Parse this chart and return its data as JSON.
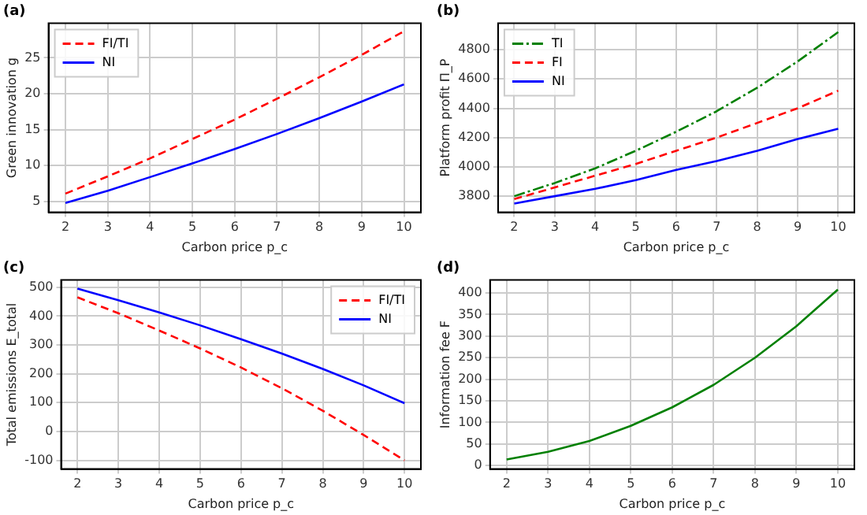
{
  "chart_data": [
    {
      "type": "line",
      "title": "(a)",
      "xlabel": "Carbon price p_c",
      "ylabel": "Green innovation g",
      "x": [
        2,
        3,
        4,
        5,
        6,
        7,
        8,
        9,
        10
      ],
      "xlim": [
        1.6,
        10.4
      ],
      "xticks": [
        2,
        3,
        4,
        5,
        6,
        7,
        8,
        9,
        10
      ],
      "ylim": [
        3.5,
        29.8
      ],
      "yticks": [
        5,
        10,
        15,
        20,
        25
      ],
      "grid": true,
      "legend": "top left",
      "marker": "none",
      "series": [
        {
          "name": "FI/TI",
          "color": "#ff0000",
          "line_style": "dashed",
          "values": [
            6.1,
            8.5,
            11,
            13.7,
            16.4,
            19.3,
            22.3,
            25.4,
            28.7
          ]
        },
        {
          "name": "NI",
          "color": "#0000ff",
          "line_style": "solid",
          "values": [
            4.8,
            6.5,
            8.4,
            10.3,
            12.3,
            14.4,
            16.6,
            18.9,
            21.3
          ]
        }
      ]
    },
    {
      "type": "line",
      "title": "(b)",
      "xlabel": "Carbon price p_c",
      "ylabel": "Platform profit Π_P",
      "x": [
        2,
        3,
        4,
        5,
        6,
        7,
        8,
        9,
        10
      ],
      "xlim": [
        1.6,
        10.4
      ],
      "xticks": [
        2,
        3,
        4,
        5,
        6,
        7,
        8,
        9,
        10
      ],
      "ylim": [
        3690,
        4980
      ],
      "yticks": [
        3800,
        4000,
        4200,
        4400,
        4600,
        4800
      ],
      "grid": true,
      "legend": "top left",
      "marker": "none",
      "series": [
        {
          "name": "TI",
          "color": "#008000",
          "line_style": "dashdot",
          "values": [
            3800,
            3890,
            3990,
            4110,
            4240,
            4380,
            4540,
            4720,
            4920
          ]
        },
        {
          "name": "FI",
          "color": "#ff0000",
          "line_style": "dashed",
          "values": [
            3780,
            3860,
            3940,
            4020,
            4110,
            4200,
            4300,
            4400,
            4520
          ]
        },
        {
          "name": "NI",
          "color": "#0000ff",
          "line_style": "solid",
          "values": [
            3750,
            3800,
            3850,
            3910,
            3980,
            4040,
            4110,
            4190,
            4260
          ]
        }
      ]
    },
    {
      "type": "line",
      "title": "(c)",
      "xlabel": "Carbon price p_c",
      "ylabel": "Total emissions E_total",
      "x": [
        2,
        3,
        4,
        5,
        6,
        7,
        8,
        9,
        10
      ],
      "xlim": [
        1.6,
        10.4
      ],
      "xticks": [
        2,
        3,
        4,
        5,
        6,
        7,
        8,
        9,
        10
      ],
      "ylim": [
        -130,
        525
      ],
      "yticks": [
        -100,
        0,
        100,
        200,
        300,
        400,
        500
      ],
      "grid": true,
      "legend": "top right",
      "marker": "none",
      "series": [
        {
          "name": "FI/TI",
          "color": "#ff0000",
          "line_style": "dashed",
          "values": [
            465,
            410,
            350,
            288,
            222,
            150,
            72,
            -12,
            -100
          ]
        },
        {
          "name": "NI",
          "color": "#0000ff",
          "line_style": "solid",
          "values": [
            495,
            455,
            413,
            368,
            320,
            270,
            217,
            160,
            98
          ]
        }
      ]
    },
    {
      "type": "line",
      "title": "(d)",
      "xlabel": "Carbon price p_c",
      "ylabel": "Information fee F",
      "x": [
        2,
        3,
        4,
        5,
        6,
        7,
        8,
        9,
        10
      ],
      "xlim": [
        1.6,
        10.4
      ],
      "xticks": [
        2,
        3,
        4,
        5,
        6,
        7,
        8,
        9,
        10
      ],
      "ylim": [
        -8,
        430
      ],
      "yticks": [
        0,
        50,
        100,
        150,
        200,
        250,
        300,
        350,
        400
      ],
      "grid": true,
      "marker": "none",
      "series": [
        {
          "color": "#008000",
          "line_style": "solid",
          "values": [
            14,
            32,
            57,
            92,
            135,
            187,
            250,
            323,
            408
          ]
        }
      ]
    }
  ]
}
